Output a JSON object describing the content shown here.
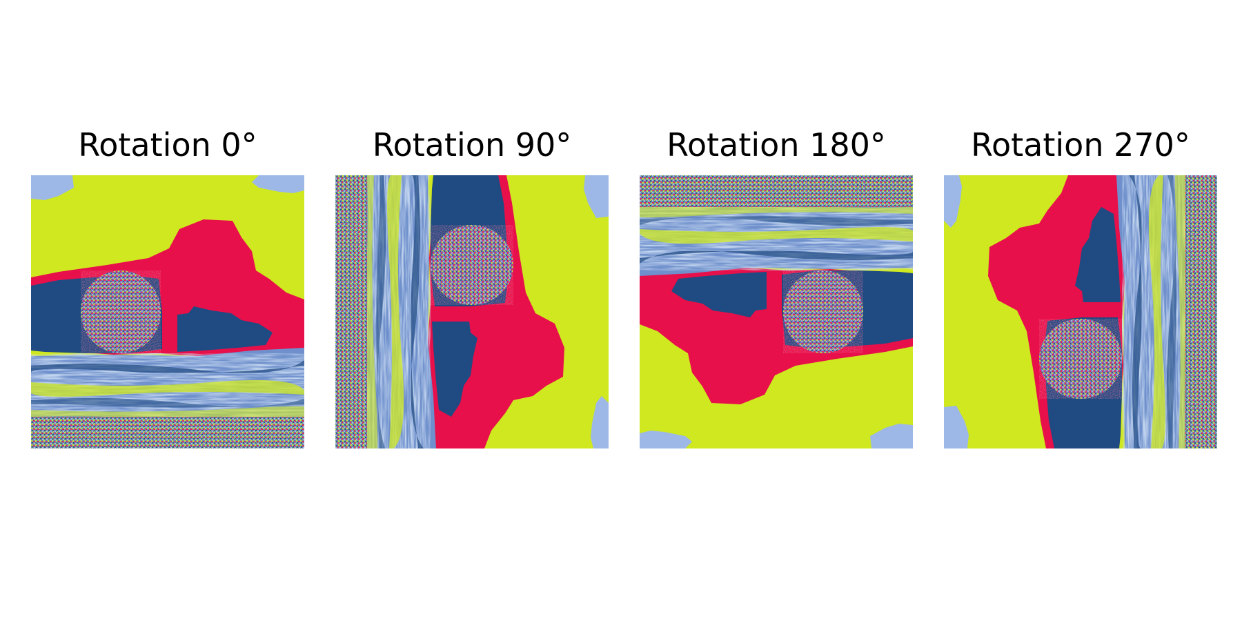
{
  "figure": {
    "panels": [
      {
        "title": "Rotation 0°",
        "rotation_deg": 0
      },
      {
        "title": "Rotation 90°",
        "rotation_deg": 90
      },
      {
        "title": "Rotation 180°",
        "rotation_deg": 180
      },
      {
        "title": "Rotation 270°",
        "rotation_deg": 270
      }
    ],
    "colors": {
      "background": "#ffffff",
      "yellow_green": "#cfe81f",
      "red": "#e8104a",
      "dark_blue": "#1f4a82",
      "light_blue": "#9db8e6",
      "mid_blue": "#5a7fbf"
    }
  }
}
